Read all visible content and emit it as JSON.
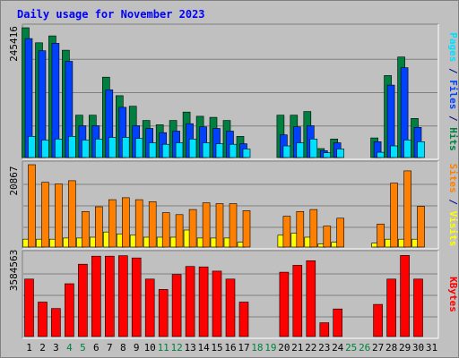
{
  "chart_data": {
    "type": "bar",
    "title": "Daily usage for November 2023",
    "categories": [
      "1",
      "2",
      "3",
      "4",
      "5",
      "6",
      "7",
      "8",
      "9",
      "10",
      "11",
      "12",
      "13",
      "14",
      "15",
      "16",
      "17",
      "18",
      "19",
      "20",
      "21",
      "22",
      "23",
      "24",
      "25",
      "26",
      "27",
      "28",
      "29",
      "30",
      "31"
    ],
    "weekend_days": [
      "4",
      "5",
      "11",
      "12",
      "18",
      "19",
      "25",
      "26"
    ],
    "panels": [
      {
        "id": "hits-files-pages",
        "ymax": 245416,
        "ymax_label": "245416",
        "side_label": [
          {
            "text": "Pages",
            "color": "#00e0ff"
          },
          {
            "text": " / ",
            "color": "#000080"
          },
          {
            "text": "Files",
            "color": "#0040ff"
          },
          {
            "text": " / ",
            "color": "#000080"
          },
          {
            "text": "Hits",
            "color": "#008040"
          }
        ],
        "series": [
          {
            "name": "Hits",
            "color": "#008040",
            "values": [
              245416,
              217000,
              230000,
              203000,
              80000,
              80000,
              152000,
              117000,
              97000,
              70000,
              62000,
              70000,
              86000,
              78000,
              76000,
              70000,
              40000,
              0,
              0,
              80000,
              80000,
              87000,
              17000,
              35000,
              0,
              0,
              37000,
              155000,
              190000,
              74000,
              0
            ]
          },
          {
            "name": "Files",
            "color": "#0040ff",
            "values": [
              225000,
              202000,
              216000,
              182000,
              60000,
              60000,
              128000,
              95000,
              60000,
              55000,
              47000,
              50000,
              64000,
              58000,
              55000,
              50000,
              26000,
              0,
              0,
              43000,
              58000,
              60000,
              13000,
              28000,
              0,
              0,
              30000,
              137000,
              170000,
              57000,
              0
            ]
          },
          {
            "name": "Pages",
            "color": "#00e0ff",
            "values": [
              40000,
              33000,
              35000,
              40000,
              33000,
              35000,
              38000,
              38000,
              36000,
              28000,
              25000,
              28000,
              35000,
              28000,
              26000,
              25000,
              16000,
              0,
              0,
              22000,
              28000,
              35000,
              9000,
              16000,
              0,
              0,
              10000,
              22000,
              33000,
              30000,
              0
            ]
          }
        ]
      },
      {
        "id": "visits-sites",
        "ymax": 20867,
        "ymax_label": "20867",
        "side_label": [
          {
            "text": "Sites",
            "color": "#ff8000"
          },
          {
            "text": " / ",
            "color": "#000080"
          },
          {
            "text": "Visits",
            "color": "#ffff00"
          }
        ],
        "series": [
          {
            "name": "Visits",
            "color": "#ffff00",
            "values": [
              2000,
              2000,
              2000,
              2300,
              2300,
              2500,
              3800,
              3300,
              3000,
              2500,
              2500,
              2500,
              4300,
              2300,
              2300,
              2300,
              1200,
              0,
              0,
              3000,
              3500,
              2500,
              800,
              1200,
              0,
              0,
              1000,
              2000,
              2000,
              2000,
              0
            ]
          },
          {
            "name": "Sites",
            "color": "#ff8000",
            "values": [
              20867,
              16400,
              16000,
              16800,
              9000,
              10200,
              12000,
              12500,
              12000,
              11500,
              8700,
              8200,
              9500,
              11200,
              11000,
              11000,
              9200,
              0,
              0,
              7800,
              9000,
              9500,
              5300,
              7300,
              0,
              0,
              5800,
              16200,
              19300,
              10300,
              0
            ]
          }
        ]
      },
      {
        "id": "kbytes",
        "ymax": 3584563,
        "ymax_label": "3584563",
        "side_label": [
          {
            "text": "KBytes",
            "color": "#ff0000"
          }
        ],
        "series": [
          {
            "name": "KBytes",
            "color": "#ff0000",
            "values": [
              2500000,
              1500000,
              1220000,
              2300000,
              3150000,
              3500000,
              3500000,
              3520000,
              3420000,
              2500000,
              2050000,
              2700000,
              3050000,
              3030000,
              2850000,
              2500000,
              1500000,
              0,
              0,
              2800000,
              3100000,
              3300000,
              600000,
              1200000,
              0,
              0,
              1400000,
              2500000,
              3530000,
              2500000,
              0
            ]
          }
        ]
      }
    ]
  }
}
